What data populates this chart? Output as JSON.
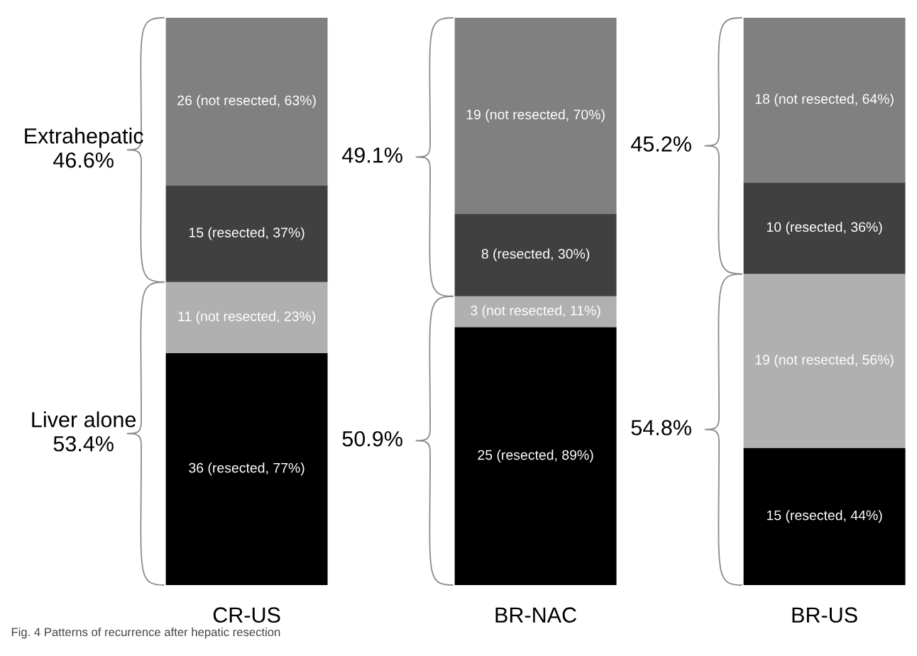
{
  "chart_data": [
    {
      "type": "bar",
      "stacked": true,
      "tick_labels": "x",
      "grid": false,
      "ylim": [
        0,
        88
      ],
      "categories": [
        "CR-US"
      ],
      "series": [
        {
          "color": "#000000",
          "values": [
            36
          ],
          "value_labels": [
            "36 (resected, 77%)"
          ]
        },
        {
          "color": "#b0b0b0",
          "values": [
            11
          ],
          "value_labels": [
            "11 (not resected, 23%)"
          ]
        },
        {
          "color": "#404040",
          "values": [
            15
          ],
          "value_labels": [
            "15 (resected, 37%)"
          ]
        },
        {
          "color": "#808080",
          "values": [
            26
          ],
          "value_labels": [
            "26 (not resected, 63%)"
          ]
        }
      ],
      "annotations": [
        "Extrahepatic\n46.6%",
        "Liver alone\n53.4%",
        "Fig. 4 Patterns of recurrence after hepatic resection"
      ]
    },
    {
      "type": "bar",
      "stacked": true,
      "tick_labels": "x",
      "grid": false,
      "ylim": [
        0,
        55
      ],
      "categories": [
        "BR-NAC"
      ],
      "series": [
        {
          "color": "#000000",
          "values": [
            25
          ],
          "value_labels": [
            "25 (resected, 89%)"
          ]
        },
        {
          "color": "#b0b0b0",
          "values": [
            3
          ],
          "value_labels": [
            "3 (not resected, 11%)"
          ]
        },
        {
          "color": "#404040",
          "values": [
            8
          ],
          "value_labels": [
            "8 (resected, 30%)"
          ]
        },
        {
          "color": "#808080",
          "values": [
            19
          ],
          "value_labels": [
            "19 (not resected, 70%)"
          ]
        }
      ],
      "annotations": [
        "49.1%",
        "50.9%"
      ]
    },
    {
      "type": "bar",
      "stacked": true,
      "tick_labels": "x",
      "grid": false,
      "ylim": [
        0,
        62
      ],
      "categories": [
        "BR-US"
      ],
      "series": [
        {
          "color": "#000000",
          "values": [
            15
          ],
          "value_labels": [
            "15 (resected, 44%)"
          ]
        },
        {
          "color": "#b0b0b0",
          "values": [
            19
          ],
          "value_labels": [
            "19 (not resected, 56%)"
          ]
        },
        {
          "color": "#404040",
          "values": [
            10
          ],
          "value_labels": [
            "10 (resected, 36%)"
          ]
        },
        {
          "color": "#808080",
          "values": [
            18
          ],
          "value_labels": [
            "18 (not resected, 64%)"
          ]
        }
      ],
      "annotations": [
        "45.2%",
        "54.8%"
      ]
    }
  ]
}
